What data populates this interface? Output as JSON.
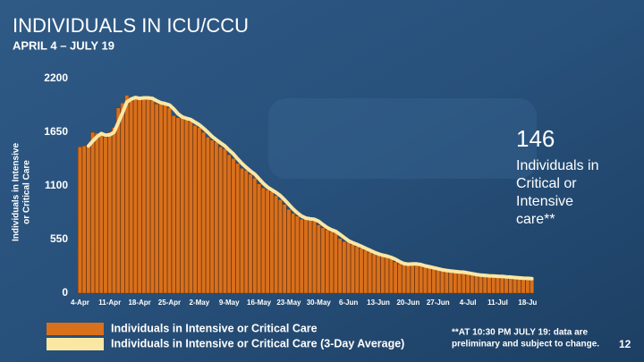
{
  "chart_data": {
    "type": "bar",
    "title": "INDIVIDUALS IN ICU/CCU",
    "subtitle": "APRIL 4 – JULY 19",
    "y_label": [
      "Individuals in Intensive",
      "or Critical Care"
    ],
    "categories": [
      "4-Apr",
      null,
      null,
      null,
      null,
      null,
      null,
      "11-Apr",
      null,
      null,
      null,
      null,
      null,
      null,
      "18-Apr",
      null,
      null,
      null,
      null,
      null,
      null,
      "25-Apr",
      null,
      null,
      null,
      null,
      null,
      null,
      "2-May",
      null,
      null,
      null,
      null,
      null,
      null,
      "9-May",
      null,
      null,
      null,
      null,
      null,
      null,
      "16-May",
      null,
      null,
      null,
      null,
      null,
      null,
      "23-May",
      null,
      null,
      null,
      null,
      null,
      null,
      "30-May",
      null,
      null,
      null,
      null,
      null,
      null,
      "6-Jun",
      null,
      null,
      null,
      null,
      null,
      null,
      "13-Jun",
      null,
      null,
      null,
      null,
      null,
      null,
      "20-Jun",
      null,
      null,
      null,
      null,
      null,
      null,
      "27-Jun",
      null,
      null,
      null,
      null,
      null,
      null,
      "4-Jul",
      null,
      null,
      null,
      null,
      null,
      null,
      "11-Jul",
      null,
      null,
      null,
      null,
      null,
      null,
      "18-Ju",
      null
    ],
    "series": [
      {
        "name": "Individuals in Intensive or Critical Care",
        "color": "#d8701c",
        "kind": "bar",
        "values": [
          1500,
          1510,
          1520,
          1650,
          1640,
          1620,
          1600,
          1650,
          1700,
          1900,
          1950,
          2030,
          1990,
          2000,
          2000,
          2010,
          2000,
          1980,
          1940,
          1940,
          1950,
          1900,
          1820,
          1800,
          1800,
          1780,
          1760,
          1720,
          1700,
          1650,
          1600,
          1570,
          1550,
          1500,
          1480,
          1420,
          1380,
          1330,
          1280,
          1260,
          1220,
          1180,
          1120,
          1080,
          1060,
          1040,
          1000,
          960,
          910,
          860,
          820,
          790,
          760,
          760,
          770,
          740,
          700,
          670,
          650,
          630,
          620,
          560,
          530,
          520,
          500,
          480,
          460,
          440,
          420,
          400,
          390,
          380,
          370,
          350,
          320,
          300,
          290,
          300,
          310,
          290,
          280,
          270,
          260,
          250,
          240,
          230,
          230,
          220,
          220,
          215,
          210,
          200,
          190,
          185,
          180,
          180,
          175,
          175,
          170,
          170,
          165,
          160,
          155,
          155,
          150,
          150,
          146
        ]
      },
      {
        "name": "Individuals in Intensive or Critical Care (3-Day Average)",
        "color": "#fbe7a4",
        "kind": "line",
        "values": [
          null,
          null,
          1510,
          1560,
          1603,
          1637,
          1620,
          1623,
          1650,
          1750,
          1850,
          1960,
          1990,
          2007,
          1997,
          2003,
          2003,
          1997,
          1973,
          1953,
          1943,
          1930,
          1890,
          1840,
          1807,
          1793,
          1780,
          1753,
          1727,
          1690,
          1650,
          1607,
          1573,
          1540,
          1510,
          1467,
          1427,
          1377,
          1330,
          1290,
          1253,
          1220,
          1173,
          1127,
          1087,
          1060,
          1033,
          1000,
          957,
          910,
          863,
          823,
          790,
          770,
          763,
          757,
          737,
          703,
          673,
          650,
          633,
          603,
          570,
          537,
          517,
          500,
          480,
          460,
          440,
          420,
          403,
          390,
          380,
          367,
          347,
          323,
          303,
          297,
          300,
          300,
          293,
          280,
          270,
          260,
          250,
          240,
          233,
          227,
          223,
          218,
          215,
          208,
          200,
          192,
          185,
          182,
          178,
          177,
          173,
          172,
          168,
          165,
          160,
          157,
          153,
          152,
          149
        ]
      }
    ],
    "ylim": [
      0,
      2200
    ],
    "yticks": [
      0,
      550,
      1100,
      1650,
      2200
    ],
    "annotation": {
      "value": "146",
      "lines": [
        "Individuals in",
        "Critical or",
        "Intensive",
        "care**"
      ]
    },
    "footnote": [
      "**AT 10:30 PM JULY 19: data are",
      "preliminary and subject to change."
    ],
    "page_number": "12"
  }
}
